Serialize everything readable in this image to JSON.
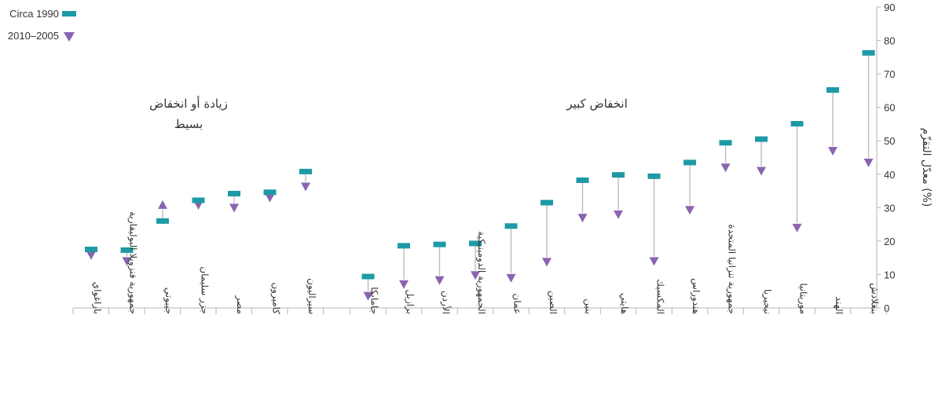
{
  "chart_data": {
    "type": "dot-range",
    "ylabel": "معدّل التقزّم (%)",
    "ylim": [
      0,
      90
    ],
    "yticks": [
      0,
      10,
      20,
      30,
      40,
      50,
      60,
      70,
      80,
      90
    ],
    "legend_position": "top-left",
    "series": [
      {
        "name": "Circa 1990",
        "marker": "bar",
        "color": "#1c9aa6"
      },
      {
        "name": "2010–2005",
        "marker": "triangle-down",
        "color": "#8a64b0"
      }
    ],
    "annotations": [
      {
        "text_lines": [
          "زيادة أو انخفاض",
          "بسيط"
        ]
      },
      {
        "text_lines": [
          "انخفاض كبير"
        ]
      }
    ],
    "points": [
      {
        "country": "باراغواي",
        "circa_1990": 17.5,
        "recent": 15.8
      },
      {
        "country": "جمهورية فنزويلا البوليفارية",
        "circa_1990": 17.3,
        "recent": 14.0
      },
      {
        "country": "جيبوتي",
        "circa_1990": 26.0,
        "recent": 30.8
      },
      {
        "country": "جزر سليمان",
        "circa_1990": 32.2,
        "recent": 30.8
      },
      {
        "country": "مصر",
        "circa_1990": 34.2,
        "recent": 30.0
      },
      {
        "country": "كاميرون",
        "circa_1990": 34.6,
        "recent": 33.0
      },
      {
        "country": "سيراليون",
        "circa_1990": 40.8,
        "recent": 36.3
      },
      {
        "country": "جامايكا",
        "circa_1990": 9.4,
        "recent": 3.6
      },
      {
        "country": "برازيل",
        "circa_1990": 18.6,
        "recent": 7.1
      },
      {
        "country": "الأردن",
        "circa_1990": 19.0,
        "recent": 8.3
      },
      {
        "country": "الجمهورية الدومينيكية",
        "circa_1990": 19.3,
        "recent": 9.8
      },
      {
        "country": "عمان",
        "circa_1990": 24.5,
        "recent": 9.0
      },
      {
        "country": "الصين",
        "circa_1990": 31.5,
        "recent": 13.8
      },
      {
        "country": "بنين",
        "circa_1990": 38.2,
        "recent": 27.0
      },
      {
        "country": "هايتي",
        "circa_1990": 39.8,
        "recent": 28.0
      },
      {
        "country": "المكسيك",
        "circa_1990": 39.4,
        "recent": 14.0
      },
      {
        "country": "هندوراس",
        "circa_1990": 43.5,
        "recent": 29.3
      },
      {
        "country": "جمهورية تنزانيا المتحدة",
        "circa_1990": 49.4,
        "recent": 42.0
      },
      {
        "country": "نيجيريا",
        "circa_1990": 50.5,
        "recent": 41.0
      },
      {
        "country": "موريتانيا",
        "circa_1990": 55.1,
        "recent": 24.0
      },
      {
        "country": "الهند",
        "circa_1990": 65.2,
        "recent": 47.0
      },
      {
        "country": "بنغلادش",
        "circa_1990": 76.3,
        "recent": 43.5
      }
    ]
  }
}
